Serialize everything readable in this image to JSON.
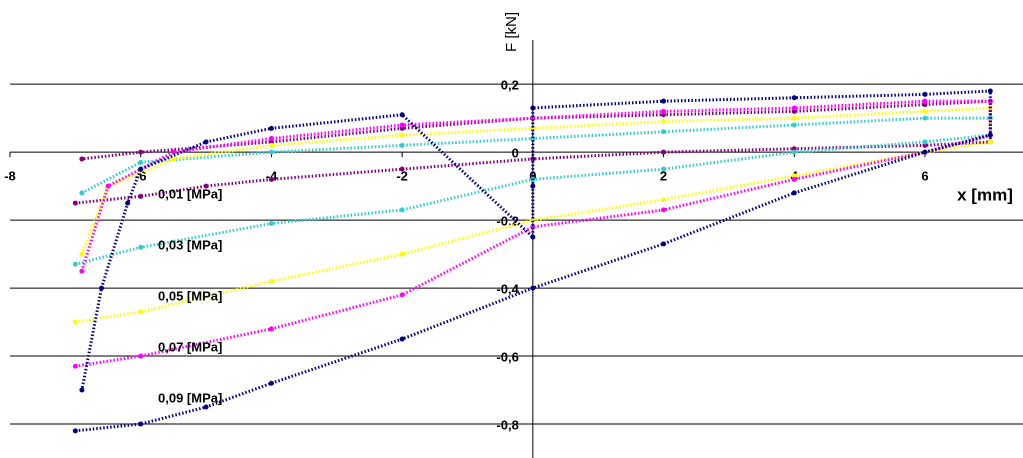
{
  "chart_data": {
    "type": "scatter",
    "xlabel": "x [mm]",
    "ylabel": "F [kN]",
    "xlim": [
      -8,
      7.5
    ],
    "ylim": [
      -0.9,
      0.33
    ],
    "xticks": [
      -8,
      -6,
      -4,
      -2,
      0,
      2,
      4,
      6
    ],
    "yticks": [
      {
        "value": 0.2,
        "label": "0,2"
      },
      0,
      {
        "value": -0.2,
        "label": "-0,2"
      },
      {
        "value": -0.4,
        "label": "-0,4"
      },
      {
        "value": -0.6,
        "label": "-0,6"
      },
      {
        "value": -0.8,
        "label": "-0,8"
      }
    ],
    "grid": true,
    "series": [
      {
        "name": "0,01 [MPa]",
        "color": "#800080",
        "x": [
          -7,
          -6,
          -5,
          -4,
          -2,
          0,
          2,
          4,
          6,
          7,
          7,
          6,
          4,
          2,
          0,
          -2,
          -4,
          -6,
          -6.9
        ],
        "y": [
          -0.15,
          -0.13,
          -0.1,
          -0.08,
          -0.05,
          -0.02,
          0,
          0.01,
          0.02,
          0.03,
          0.15,
          0.14,
          0.12,
          0.11,
          0.1,
          0.07,
          0.03,
          0,
          -0.02
        ]
      },
      {
        "name": "0,03 [MPa]",
        "color": "#33cccc",
        "x": [
          -7,
          -6,
          -4,
          -2,
          0,
          2,
          4,
          6,
          7,
          7,
          6,
          4,
          2,
          0,
          -2,
          -4,
          -6,
          -6.9
        ],
        "y": [
          -0.33,
          -0.28,
          -0.21,
          -0.17,
          -0.08,
          -0.05,
          0,
          0.03,
          0.05,
          0.1,
          0.1,
          0.08,
          0.06,
          0.04,
          0.02,
          0,
          -0.03,
          -0.12
        ]
      },
      {
        "name": "0,05 [MPa]",
        "color": "#ffff00",
        "x": [
          -7,
          -6,
          -4,
          -2,
          0,
          2,
          4,
          6,
          7,
          7,
          6,
          4,
          2,
          0,
          -2,
          -4,
          -5.5,
          -6.5,
          -6.9
        ],
        "y": [
          -0.5,
          -0.47,
          -0.38,
          -0.3,
          -0.2,
          -0.14,
          -0.07,
          0,
          0.03,
          0.13,
          0.12,
          0.1,
          0.09,
          0.07,
          0.05,
          0.02,
          -0.02,
          -0.1,
          -0.3
        ]
      },
      {
        "name": "0,07 [MPa]",
        "color": "#ff00ff",
        "x": [
          -7,
          -6,
          -4,
          -2,
          0,
          2,
          4,
          6,
          7,
          7,
          6,
          4,
          2,
          0,
          -2,
          -4,
          -5.5,
          -6.5,
          -6.9
        ],
        "y": [
          -0.63,
          -0.6,
          -0.52,
          -0.42,
          -0.22,
          -0.17,
          -0.08,
          0,
          0.05,
          0.15,
          0.15,
          0.13,
          0.12,
          0.1,
          0.08,
          0.04,
          0,
          -0.1,
          -0.35
        ]
      },
      {
        "name": "0,09 [MPa]",
        "color": "#000080",
        "x": [
          -7,
          -6,
          -5,
          -4,
          -2,
          0,
          2,
          4,
          6,
          7,
          7,
          6,
          4,
          2,
          0,
          0,
          0,
          -2,
          -4,
          -5,
          -6,
          -6.2,
          -6.6,
          -6.9
        ],
        "y": [
          -0.82,
          -0.8,
          -0.75,
          -0.68,
          -0.55,
          -0.4,
          -0.27,
          -0.12,
          0,
          0.05,
          0.18,
          0.17,
          0.16,
          0.15,
          0.13,
          -0.1,
          -0.25,
          0.11,
          0.07,
          0.03,
          -0.05,
          -0.15,
          -0.4,
          -0.7
        ]
      }
    ]
  }
}
